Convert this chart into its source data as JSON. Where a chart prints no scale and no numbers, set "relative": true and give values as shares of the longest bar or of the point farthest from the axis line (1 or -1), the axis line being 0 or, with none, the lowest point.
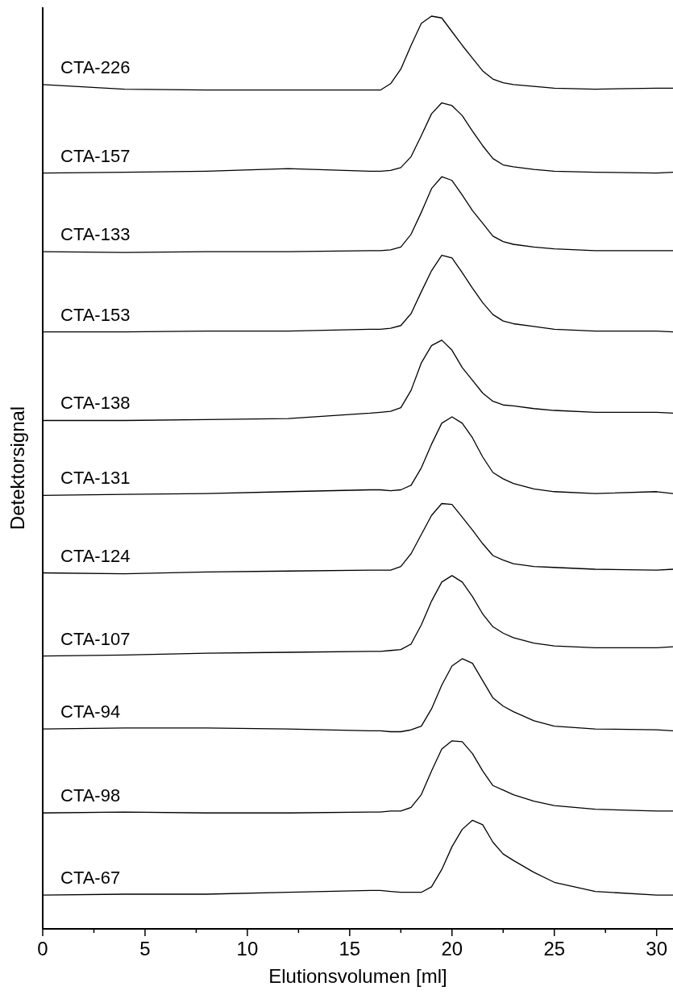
{
  "chart_data": {
    "type": "line",
    "relative": true,
    "xlabel": "Elutionsvolumen [ml]",
    "ylabel": "Detektorsignal",
    "xlim": [
      0,
      30.8
    ],
    "xticks": [
      0,
      {
        "value": 2.5,
        "label": null
      },
      5,
      {
        "value": 7.5,
        "label": null
      },
      10,
      {
        "value": 12.5,
        "label": null
      },
      15,
      {
        "value": 17.5,
        "label": null
      },
      20,
      {
        "value": 22.5,
        "label": null
      },
      25,
      {
        "value": 27.5,
        "label": null
      },
      30
    ],
    "x": [
      0,
      4,
      8,
      12,
      16,
      16.5,
      17,
      17.5,
      18,
      18.5,
      19,
      19.5,
      20,
      20.5,
      21,
      21.5,
      22,
      22.5,
      23,
      24,
      25,
      27,
      30,
      30.8
    ],
    "grid": false,
    "legend": false,
    "marker": "none",
    "line_style": "solid",
    "series": [
      {
        "name": "CTA-226",
        "color": "#000000",
        "values": [
          0.925,
          0.92,
          0.919,
          0.919,
          0.919,
          0.919,
          0.926,
          0.942,
          0.968,
          0.992,
          1.0,
          0.998,
          0.983,
          0.968,
          0.954,
          0.94,
          0.931,
          0.927,
          0.925,
          0.923,
          0.921,
          0.92,
          0.921,
          0.921
        ]
      },
      {
        "name": "CTA-157",
        "color": "#000000",
        "values": [
          0.828,
          0.829,
          0.83,
          0.833,
          0.83,
          0.83,
          0.831,
          0.834,
          0.846,
          0.869,
          0.893,
          0.905,
          0.902,
          0.891,
          0.874,
          0.858,
          0.844,
          0.837,
          0.835,
          0.832,
          0.83,
          0.829,
          0.828,
          0.829
        ]
      },
      {
        "name": "CTA-133",
        "color": "#000000",
        "values": [
          0.742,
          0.741,
          0.742,
          0.742,
          0.743,
          0.743,
          0.744,
          0.747,
          0.761,
          0.785,
          0.811,
          0.824,
          0.82,
          0.804,
          0.787,
          0.773,
          0.759,
          0.753,
          0.75,
          0.747,
          0.745,
          0.743,
          0.743,
          0.743
        ]
      },
      {
        "name": "CTA-153",
        "color": "#000000",
        "values": [
          0.654,
          0.654,
          0.655,
          0.655,
          0.657,
          0.657,
          0.658,
          0.661,
          0.674,
          0.698,
          0.721,
          0.738,
          0.735,
          0.719,
          0.702,
          0.686,
          0.673,
          0.666,
          0.663,
          0.66,
          0.657,
          0.655,
          0.655,
          0.654
        ]
      },
      {
        "name": "CTA-138",
        "color": "#000000",
        "values": [
          0.557,
          0.557,
          0.558,
          0.559,
          0.565,
          0.566,
          0.567,
          0.571,
          0.59,
          0.62,
          0.639,
          0.645,
          0.634,
          0.615,
          0.601,
          0.587,
          0.578,
          0.574,
          0.573,
          0.57,
          0.568,
          0.566,
          0.566,
          0.565
        ]
      },
      {
        "name": "CTA-131",
        "color": "#000000",
        "values": [
          0.475,
          0.476,
          0.477,
          0.479,
          0.481,
          0.481,
          0.48,
          0.481,
          0.486,
          0.505,
          0.531,
          0.554,
          0.561,
          0.554,
          0.538,
          0.517,
          0.5,
          0.493,
          0.488,
          0.482,
          0.479,
          0.477,
          0.479,
          0.477
        ]
      },
      {
        "name": "CTA-124",
        "color": "#000000",
        "values": [
          0.39,
          0.389,
          0.391,
          0.392,
          0.393,
          0.393,
          0.393,
          0.397,
          0.411,
          0.432,
          0.453,
          0.466,
          0.465,
          0.451,
          0.437,
          0.422,
          0.409,
          0.404,
          0.4,
          0.397,
          0.396,
          0.394,
          0.393,
          0.394
        ]
      },
      {
        "name": "CTA-107",
        "color": "#000000",
        "values": [
          0.299,
          0.3,
          0.302,
          0.303,
          0.304,
          0.304,
          0.305,
          0.306,
          0.312,
          0.333,
          0.359,
          0.38,
          0.387,
          0.38,
          0.364,
          0.345,
          0.331,
          0.324,
          0.319,
          0.313,
          0.31,
          0.308,
          0.308,
          0.309
        ]
      },
      {
        "name": "CTA-94",
        "color": "#000000",
        "values": [
          0.219,
          0.22,
          0.22,
          0.219,
          0.217,
          0.217,
          0.216,
          0.216,
          0.218,
          0.222,
          0.241,
          0.267,
          0.288,
          0.296,
          0.291,
          0.272,
          0.253,
          0.244,
          0.238,
          0.228,
          0.222,
          0.219,
          0.218,
          0.217
        ]
      },
      {
        "name": "CTA-98",
        "color": "#000000",
        "values": [
          0.127,
          0.128,
          0.127,
          0.127,
          0.128,
          0.128,
          0.129,
          0.129,
          0.133,
          0.147,
          0.173,
          0.197,
          0.206,
          0.205,
          0.192,
          0.173,
          0.157,
          0.152,
          0.147,
          0.14,
          0.135,
          0.131,
          0.129,
          0.129
        ]
      },
      {
        "name": "CTA-67",
        "color": "#000000",
        "values": [
          0.037,
          0.038,
          0.038,
          0.04,
          0.042,
          0.042,
          0.041,
          0.04,
          0.04,
          0.04,
          0.046,
          0.065,
          0.09,
          0.109,
          0.119,
          0.114,
          0.095,
          0.082,
          0.075,
          0.062,
          0.051,
          0.041,
          0.037,
          0.037
        ]
      }
    ]
  }
}
